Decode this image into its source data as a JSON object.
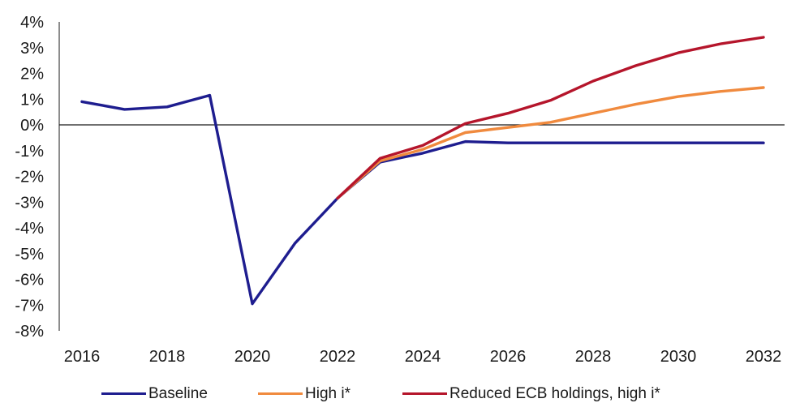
{
  "chart_data": {
    "type": "line",
    "title": "",
    "xlabel": "",
    "ylabel": "",
    "x": [
      2016,
      2017,
      2018,
      2019,
      2020,
      2021,
      2022,
      2023,
      2024,
      2025,
      2026,
      2027,
      2028,
      2029,
      2030,
      2031,
      2032
    ],
    "xticks": [
      "2016",
      "2018",
      "2020",
      "2022",
      "2024",
      "2026",
      "2028",
      "2030",
      "2032"
    ],
    "xlim": [
      2016,
      2032
    ],
    "ylim": [
      -8,
      4
    ],
    "yticks": [
      "4%",
      "3%",
      "2%",
      "1%",
      "0%",
      "-1%",
      "-2%",
      "-3%",
      "-4%",
      "-5%",
      "-6%",
      "-7%",
      "-8%"
    ],
    "ytick_values": [
      4,
      3,
      2,
      1,
      0,
      -1,
      -2,
      -3,
      -4,
      -5,
      -6,
      -7,
      -8
    ],
    "zero_line": true,
    "grid": false,
    "legend_position": "bottom",
    "series": [
      {
        "name": "Baseline",
        "color": "#1e1d8f",
        "x": [
          2016,
          2017,
          2018,
          2019,
          2020,
          2021,
          2022,
          2023,
          2024,
          2025,
          2026,
          2027,
          2028,
          2029,
          2030,
          2031,
          2032
        ],
        "values": [
          0.9,
          0.6,
          0.7,
          1.15,
          -6.95,
          -4.6,
          -2.85,
          -1.45,
          -1.1,
          -0.65,
          -0.7,
          -0.7,
          -0.7,
          -0.7,
          -0.7,
          -0.7,
          -0.7
        ]
      },
      {
        "name": "High i*",
        "color": "#f08a3e",
        "x": [
          2022,
          2023,
          2024,
          2025,
          2026,
          2027,
          2028,
          2029,
          2030,
          2031,
          2032
        ],
        "values": [
          -2.85,
          -1.4,
          -0.95,
          -0.3,
          -0.1,
          0.1,
          0.45,
          0.8,
          1.1,
          1.3,
          1.45
        ]
      },
      {
        "name": "Reduced ECB holdings, high i*",
        "color": "#b5152b",
        "x": [
          2022,
          2023,
          2024,
          2025,
          2026,
          2027,
          2028,
          2029,
          2030,
          2031,
          2032
        ],
        "values": [
          -2.85,
          -1.3,
          -0.8,
          0.05,
          0.45,
          0.95,
          1.7,
          2.3,
          2.8,
          3.15,
          3.4
        ]
      }
    ]
  }
}
